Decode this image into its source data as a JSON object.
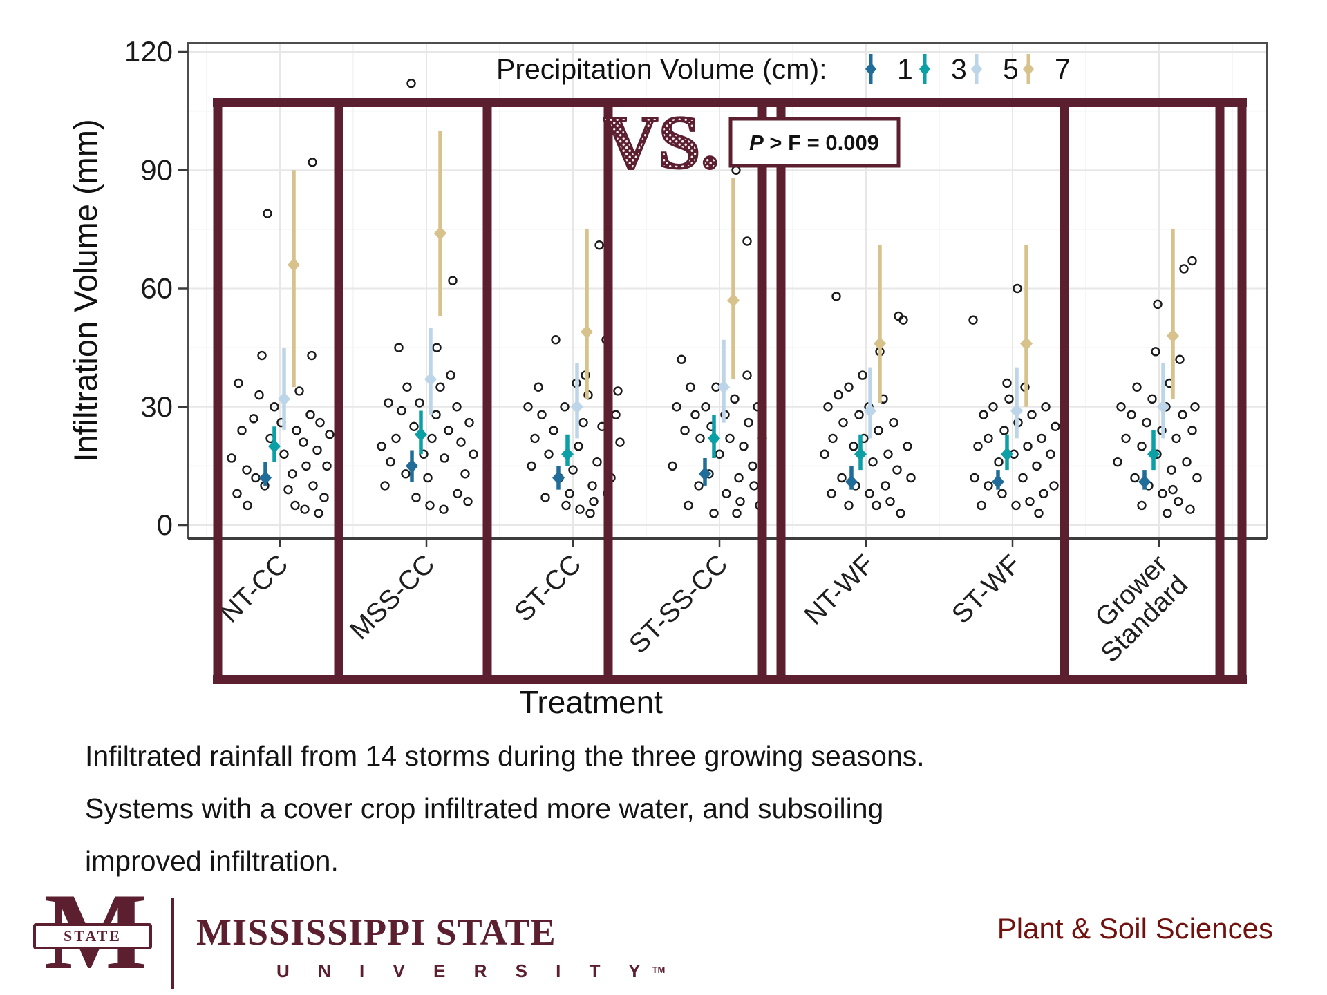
{
  "legend": {
    "title": "Precipitation Volume (cm):",
    "items": [
      {
        "label": "1",
        "color": "#1f6d98"
      },
      {
        "label": "3",
        "color": "#0b9fa6"
      },
      {
        "label": "5",
        "color": "#bcd5e9"
      },
      {
        "label": "7",
        "color": "#d8c28c"
      }
    ]
  },
  "annotations": {
    "vs_label": "VS.",
    "p_value_italic": "P",
    "p_value_rest": " > F = 0.009"
  },
  "colors": {
    "maroon": "#5b1f30",
    "dept_red": "#70110e",
    "grid_major": "#e7e7e7",
    "grid_minor": "#f3f3f3",
    "axis": "#3d3d3d",
    "point_outline": "#1a1a1a"
  },
  "chart_data": {
    "type": "scatter",
    "title": "",
    "xlabel": "Treatment",
    "ylabel": "Infiltration Volume (mm)",
    "ylim": [
      0,
      120
    ],
    "yticks": [
      0,
      30,
      60,
      90,
      120
    ],
    "legend_title": "Precipitation Volume (cm):",
    "legend_position": "top-right-inside",
    "grid": true,
    "series_labels": [
      "1",
      "3",
      "5",
      "7"
    ],
    "treatments": [
      {
        "label": "NT-CC",
        "stats": [
          {
            "precip": "1",
            "mean": 12,
            "lo": 10,
            "hi": 16
          },
          {
            "precip": "3",
            "mean": 20,
            "lo": 16,
            "hi": 25
          },
          {
            "precip": "5",
            "mean": 32,
            "lo": 24,
            "hi": 45
          },
          {
            "precip": "7",
            "mean": 66,
            "lo": 35,
            "hi": 90
          }
        ],
        "points": [
          [
            -62,
            8
          ],
          [
            -48,
            14
          ],
          [
            -55,
            24
          ],
          [
            -70,
            17
          ],
          [
            -38,
            27
          ],
          [
            -30,
            33
          ],
          [
            -47,
            5
          ],
          [
            -22,
            10
          ],
          [
            -14,
            22
          ],
          [
            -8,
            30
          ],
          [
            2,
            26
          ],
          [
            6,
            18
          ],
          [
            12,
            9
          ],
          [
            18,
            13
          ],
          [
            24,
            24
          ],
          [
            28,
            34
          ],
          [
            34,
            21
          ],
          [
            38,
            15
          ],
          [
            44,
            28
          ],
          [
            48,
            10
          ],
          [
            54,
            19
          ],
          [
            58,
            26
          ],
          [
            64,
            7
          ],
          [
            68,
            15
          ],
          [
            72,
            23
          ],
          [
            46,
            43
          ],
          [
            -26,
            43
          ],
          [
            -60,
            36
          ],
          [
            22,
            5
          ],
          [
            36,
            4
          ],
          [
            56,
            3
          ],
          [
            -18,
            79
          ],
          [
            47,
            92
          ],
          [
            -35,
            12
          ]
        ]
      },
      {
        "label": "MSS-CC",
        "stats": [
          {
            "precip": "1",
            "mean": 15,
            "lo": 11,
            "hi": 19
          },
          {
            "precip": "3",
            "mean": 23,
            "lo": 18,
            "hi": 29
          },
          {
            "precip": "5",
            "mean": 37,
            "lo": 28,
            "hi": 50
          },
          {
            "precip": "7",
            "mean": 74,
            "lo": 53,
            "hi": 100
          }
        ],
        "points": [
          [
            -22,
            112
          ],
          [
            -60,
            10
          ],
          [
            -52,
            16
          ],
          [
            -44,
            22
          ],
          [
            -36,
            29
          ],
          [
            -28,
            35
          ],
          [
            -18,
            25
          ],
          [
            -10,
            31
          ],
          [
            -4,
            18
          ],
          [
            2,
            12
          ],
          [
            8,
            22
          ],
          [
            14,
            28
          ],
          [
            20,
            35
          ],
          [
            26,
            17
          ],
          [
            32,
            24
          ],
          [
            38,
            62
          ],
          [
            -40,
            45
          ],
          [
            44,
            30
          ],
          [
            50,
            21
          ],
          [
            56,
            13
          ],
          [
            62,
            26
          ],
          [
            68,
            18
          ],
          [
            -55,
            31
          ],
          [
            -15,
            7
          ],
          [
            5,
            5
          ],
          [
            25,
            4
          ],
          [
            45,
            8
          ],
          [
            60,
            6
          ],
          [
            -30,
            13
          ],
          [
            15,
            45
          ],
          [
            35,
            38
          ],
          [
            -65,
            20
          ]
        ]
      },
      {
        "label": "ST-CC",
        "stats": [
          {
            "precip": "1",
            "mean": 12,
            "lo": 9,
            "hi": 15
          },
          {
            "precip": "3",
            "mean": 18,
            "lo": 15,
            "hi": 23
          },
          {
            "precip": "5",
            "mean": 30,
            "lo": 22,
            "hi": 41
          },
          {
            "precip": "7",
            "mean": 49,
            "lo": 32,
            "hi": 75
          }
        ],
        "points": [
          [
            -65,
            30
          ],
          [
            -55,
            22
          ],
          [
            -45,
            28
          ],
          [
            -60,
            15
          ],
          [
            -35,
            18
          ],
          [
            -28,
            24
          ],
          [
            -20,
            12
          ],
          [
            -12,
            30
          ],
          [
            -5,
            8
          ],
          [
            0,
            14
          ],
          [
            8,
            20
          ],
          [
            15,
            26
          ],
          [
            22,
            33
          ],
          [
            28,
            10
          ],
          [
            35,
            16
          ],
          [
            42,
            25
          ],
          [
            48,
            47
          ],
          [
            -25,
            47
          ],
          [
            55,
            12
          ],
          [
            62,
            28
          ],
          [
            68,
            21
          ],
          [
            38,
            71
          ],
          [
            18,
            38
          ],
          [
            -40,
            7
          ],
          [
            -10,
            5
          ],
          [
            10,
            4
          ],
          [
            30,
            6
          ],
          [
            50,
            8
          ],
          [
            65,
            34
          ],
          [
            -50,
            35
          ],
          [
            5,
            36
          ],
          [
            25,
            3
          ]
        ]
      },
      {
        "label": "ST-SS-CC",
        "stats": [
          {
            "precip": "1",
            "mean": 13,
            "lo": 10,
            "hi": 17
          },
          {
            "precip": "3",
            "mean": 22,
            "lo": 17,
            "hi": 28
          },
          {
            "precip": "5",
            "mean": 35,
            "lo": 26,
            "hi": 47
          },
          {
            "precip": "7",
            "mean": 57,
            "lo": 37,
            "hi": 88
          }
        ],
        "points": [
          [
            24,
            90
          ],
          [
            40,
            72
          ],
          [
            -55,
            42
          ],
          [
            -62,
            30
          ],
          [
            -50,
            24
          ],
          [
            -42,
            35
          ],
          [
            -35,
            28
          ],
          [
            -28,
            22
          ],
          [
            -20,
            30
          ],
          [
            -12,
            25
          ],
          [
            -5,
            35
          ],
          [
            0,
            18
          ],
          [
            8,
            28
          ],
          [
            15,
            22
          ],
          [
            22,
            32
          ],
          [
            28,
            12
          ],
          [
            35,
            20
          ],
          [
            42,
            26
          ],
          [
            48,
            15
          ],
          [
            55,
            30
          ],
          [
            62,
            22
          ],
          [
            -15,
            13
          ],
          [
            -30,
            10
          ],
          [
            10,
            8
          ],
          [
            30,
            6
          ],
          [
            50,
            10
          ],
          [
            -45,
            5
          ],
          [
            -8,
            3
          ],
          [
            25,
            3
          ],
          [
            40,
            38
          ],
          [
            -68,
            15
          ],
          [
            58,
            5
          ]
        ]
      },
      {
        "label": "NT-WF",
        "stats": [
          {
            "precip": "1",
            "mean": 11,
            "lo": 9,
            "hi": 15
          },
          {
            "precip": "3",
            "mean": 18,
            "lo": 14,
            "hi": 23
          },
          {
            "precip": "5",
            "mean": 29,
            "lo": 22,
            "hi": 40
          },
          {
            "precip": "7",
            "mean": 46,
            "lo": 31,
            "hi": 71
          }
        ],
        "points": [
          [
            -43,
            58
          ],
          [
            -55,
            30
          ],
          [
            -48,
            22
          ],
          [
            -40,
            33
          ],
          [
            -33,
            26
          ],
          [
            -25,
            35
          ],
          [
            -18,
            20
          ],
          [
            -10,
            28
          ],
          [
            -3,
            22
          ],
          [
            4,
            30
          ],
          [
            10,
            16
          ],
          [
            18,
            24
          ],
          [
            25,
            32
          ],
          [
            32,
            18
          ],
          [
            40,
            26
          ],
          [
            47,
            53
          ],
          [
            54,
            52
          ],
          [
            -60,
            18
          ],
          [
            -15,
            10
          ],
          [
            5,
            8
          ],
          [
            28,
            10
          ],
          [
            45,
            14
          ],
          [
            -35,
            12
          ],
          [
            60,
            20
          ],
          [
            65,
            12
          ],
          [
            -50,
            8
          ],
          [
            15,
            5
          ],
          [
            35,
            6
          ],
          [
            -25,
            5
          ],
          [
            50,
            3
          ],
          [
            -5,
            38
          ],
          [
            20,
            44
          ]
        ]
      },
      {
        "label": "ST-WF",
        "stats": [
          {
            "precip": "1",
            "mean": 11,
            "lo": 9,
            "hi": 14
          },
          {
            "precip": "3",
            "mean": 18,
            "lo": 14,
            "hi": 23
          },
          {
            "precip": "5",
            "mean": 29,
            "lo": 22,
            "hi": 40
          },
          {
            "precip": "7",
            "mean": 46,
            "lo": 30,
            "hi": 71
          }
        ],
        "points": [
          [
            -57,
            52
          ],
          [
            7,
            60
          ],
          [
            -50,
            20
          ],
          [
            -42,
            28
          ],
          [
            -35,
            22
          ],
          [
            -28,
            30
          ],
          [
            -20,
            16
          ],
          [
            -12,
            24
          ],
          [
            -5,
            32
          ],
          [
            2,
            18
          ],
          [
            8,
            26
          ],
          [
            15,
            12
          ],
          [
            22,
            20
          ],
          [
            28,
            28
          ],
          [
            35,
            15
          ],
          [
            42,
            22
          ],
          [
            48,
            30
          ],
          [
            55,
            18
          ],
          [
            62,
            25
          ],
          [
            -15,
            8
          ],
          [
            5,
            5
          ],
          [
            25,
            6
          ],
          [
            45,
            8
          ],
          [
            -35,
            10
          ],
          [
            -55,
            12
          ],
          [
            18,
            35
          ],
          [
            38,
            3
          ],
          [
            -8,
            36
          ],
          [
            60,
            10
          ],
          [
            -45,
            5
          ]
        ]
      },
      {
        "label": "Grower\nStandard",
        "stats": [
          {
            "precip": "1",
            "mean": 11,
            "lo": 9,
            "hi": 14
          },
          {
            "precip": "3",
            "mean": 18,
            "lo": 14,
            "hi": 24
          },
          {
            "precip": "5",
            "mean": 30,
            "lo": 22,
            "hi": 41
          },
          {
            "precip": "7",
            "mean": 48,
            "lo": 32,
            "hi": 75
          }
        ],
        "points": [
          [
            36,
            65
          ],
          [
            48,
            67
          ],
          [
            -2,
            56
          ],
          [
            30,
            42
          ],
          [
            -55,
            30
          ],
          [
            -48,
            22
          ],
          [
            -40,
            28
          ],
          [
            -32,
            35
          ],
          [
            -25,
            20
          ],
          [
            -18,
            26
          ],
          [
            -10,
            32
          ],
          [
            -3,
            18
          ],
          [
            4,
            24
          ],
          [
            10,
            30
          ],
          [
            18,
            14
          ],
          [
            25,
            22
          ],
          [
            34,
            28
          ],
          [
            40,
            16
          ],
          [
            48,
            24
          ],
          [
            55,
            12
          ],
          [
            -15,
            10
          ],
          [
            5,
            8
          ],
          [
            28,
            6
          ],
          [
            -35,
            12
          ],
          [
            -60,
            16
          ],
          [
            15,
            36
          ],
          [
            -25,
            5
          ],
          [
            45,
            4
          ],
          [
            12,
            3
          ],
          [
            -5,
            44
          ],
          [
            52,
            30
          ],
          [
            20,
            9
          ]
        ]
      }
    ]
  },
  "caption": {
    "lines": [
      "Infiltrated rainfall from 14 storms during the three growing seasons.",
      "Systems with a cover crop infiltrated more water, and subsoiling",
      "improved infiltration."
    ]
  },
  "footer": {
    "logo_letter": "M",
    "logo_banner": "STATE",
    "university_name": "MISSISSIPPI STATE",
    "university_sub": "U N I V E R S I T Y",
    "trademark": "TM",
    "department": "Plant & Soil Sciences"
  }
}
